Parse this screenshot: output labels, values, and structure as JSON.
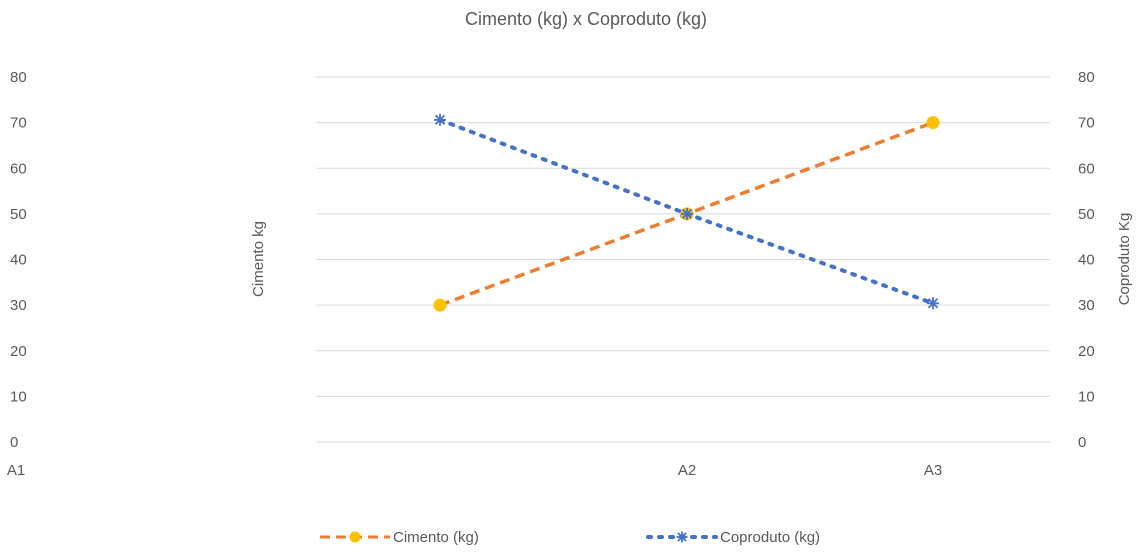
{
  "chart_data": {
    "type": "line",
    "title": "Cimento (kg) x Coproduto (kg)",
    "categories": [
      "A1",
      "A2",
      "A3"
    ],
    "ylabel": "Cimento kg",
    "y2label": "Coproduto Kg",
    "ylim": [
      0,
      80
    ],
    "y2lim": [
      0,
      80
    ],
    "yticks": [
      0,
      10,
      20,
      30,
      40,
      50,
      60,
      70,
      80
    ],
    "grid": true,
    "legend_position": "bottom",
    "series": [
      {
        "name": "Cimento (kg)",
        "values": [
          30,
          50,
          70
        ],
        "axis": "left",
        "color": "#ED7D31",
        "marker_color": "#FFC000",
        "line_style": "dashed",
        "marker": "circle"
      },
      {
        "name": "Coproduto (kg)",
        "values": [
          70.6,
          50,
          30.4
        ],
        "axis": "right",
        "color": "#4472C4",
        "marker_color": "#4472C4",
        "line_style": "dotted",
        "marker": "star"
      }
    ],
    "gridline_color": "#D9D9D9"
  }
}
